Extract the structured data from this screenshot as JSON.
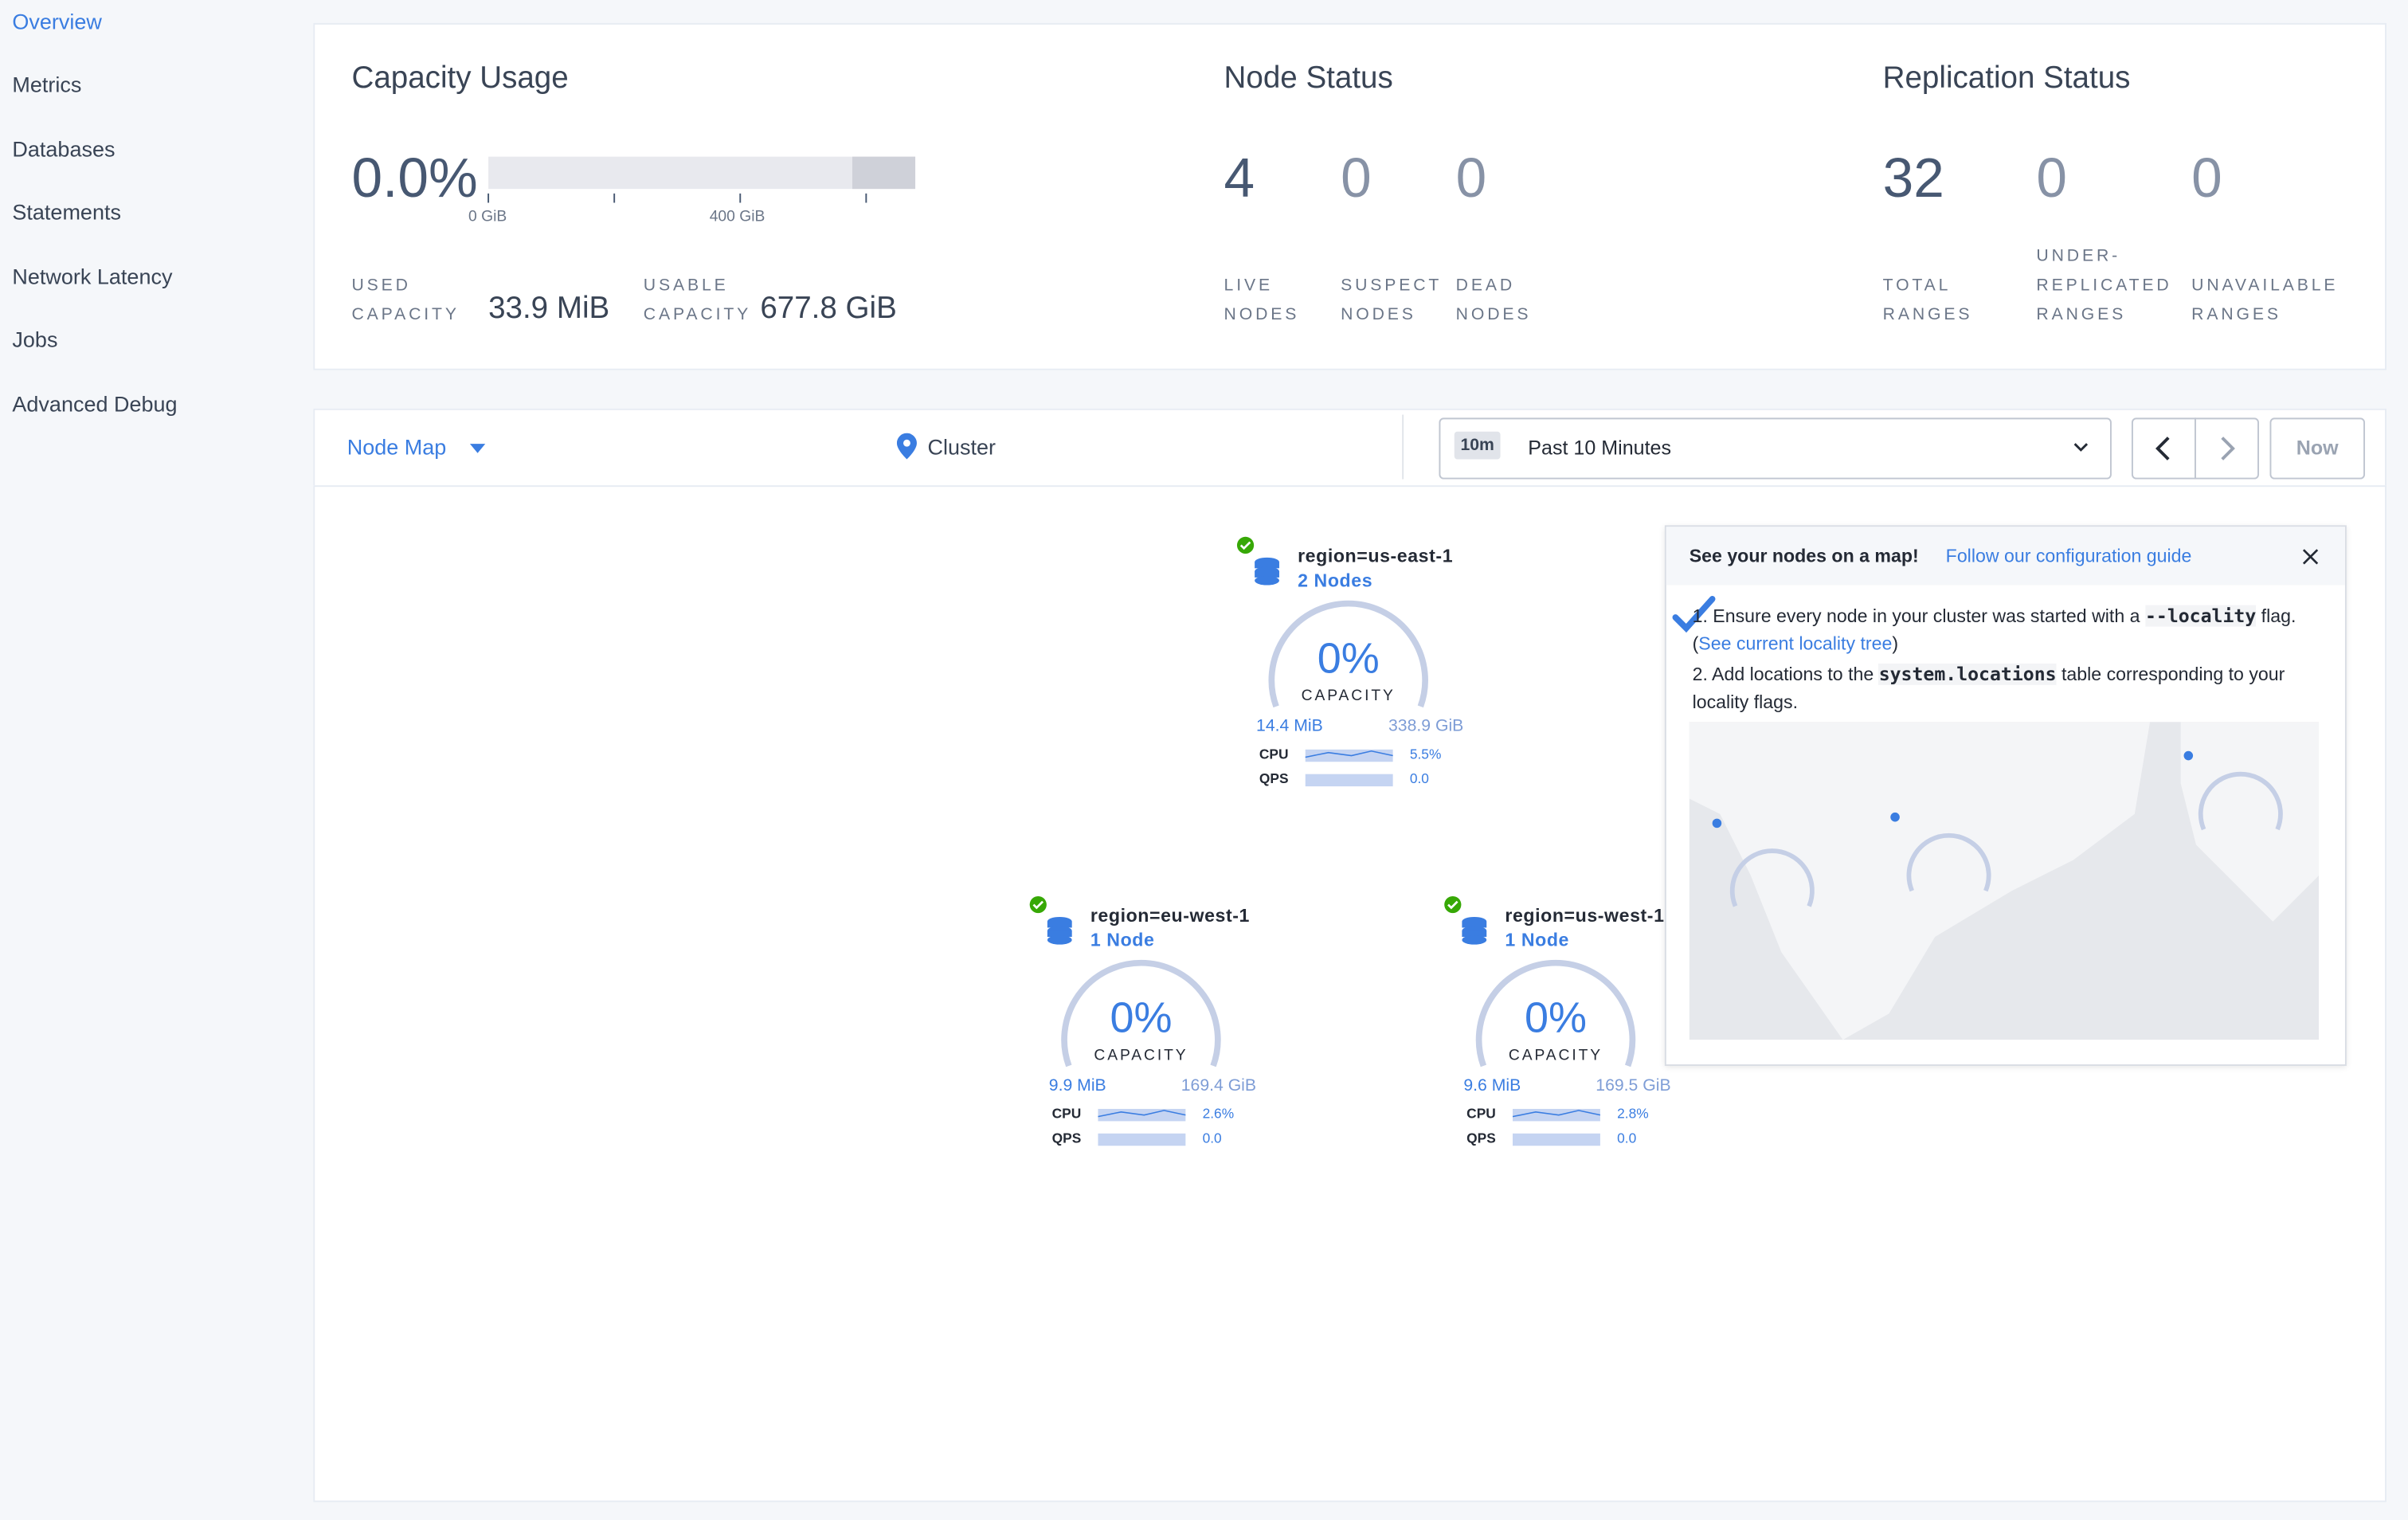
{
  "sidebar": {
    "items": [
      "Overview",
      "Metrics",
      "Databases",
      "Statements",
      "Network Latency",
      "Jobs",
      "Advanced Debug"
    ]
  },
  "capacity_usage": {
    "title": "Capacity Usage",
    "percent": "0.0%",
    "axis_labels": [
      "0 GiB",
      "400 GiB"
    ],
    "used_label": "USED CAPACITY",
    "used_value": "33.9 MiB",
    "usable_label": "USABLE CAPACITY",
    "usable_value": "677.8 GiB"
  },
  "node_status": {
    "title": "Node Status",
    "stats": [
      {
        "value": "4",
        "label": "LIVE NODES"
      },
      {
        "value": "0",
        "label": "SUSPECT NODES"
      },
      {
        "value": "0",
        "label": "DEAD NODES"
      }
    ]
  },
  "replication_status": {
    "title": "Replication Status",
    "stats": [
      {
        "value": "32",
        "label": "TOTAL RANGES"
      },
      {
        "value": "0",
        "label": "UNDER-REPLICATED RANGES"
      },
      {
        "value": "0",
        "label": "UNAVAILABLE RANGES"
      }
    ]
  },
  "toolbar": {
    "view": "Node Map",
    "breadcrumb": "Cluster",
    "time_badge": "10m",
    "time_range": "Past 10 Minutes",
    "now": "Now"
  },
  "localities": [
    {
      "name": "region=us-east-1",
      "nodes": "2 Nodes",
      "capacity": "0%",
      "capacity_label": "CAPACITY",
      "used": "14.4 MiB",
      "total": "338.9 GiB",
      "cpu_label": "CPU",
      "cpu": "5.5%",
      "qps_label": "QPS",
      "qps": "0.0"
    },
    {
      "name": "region=eu-west-1",
      "nodes": "1 Node",
      "capacity": "0%",
      "capacity_label": "CAPACITY",
      "used": "9.9 MiB",
      "total": "169.4 GiB",
      "cpu_label": "CPU",
      "cpu": "2.6%",
      "qps_label": "QPS",
      "qps": "0.0"
    },
    {
      "name": "region=us-west-1",
      "nodes": "1 Node",
      "capacity": "0%",
      "capacity_label": "CAPACITY",
      "used": "9.6 MiB",
      "total": "169.5 GiB",
      "cpu_label": "CPU",
      "cpu": "2.8%",
      "qps_label": "QPS",
      "qps": "0.0"
    }
  ],
  "map_tip": {
    "title": "See your nodes on a map!",
    "link": "Follow our configuration guide",
    "step1": [
      "Ensure every node in your cluster was started with a ",
      "--locality",
      " flag. (",
      "See current locality tree",
      ")"
    ],
    "step2": [
      "Add locations to the ",
      "system.locations",
      " table corresponding to your locality flags."
    ]
  }
}
